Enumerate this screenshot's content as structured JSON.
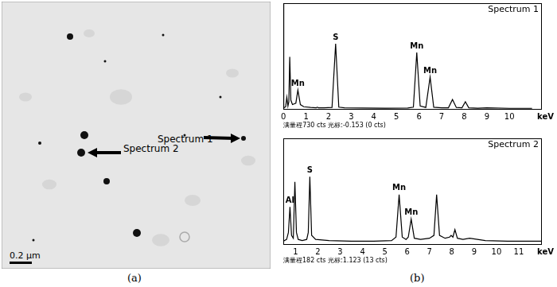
{
  "panels": {
    "a": {
      "caption": "(a)",
      "scale_bar": "0.2 μm",
      "pointers": [
        "Spectrum 1",
        "Spectrum 2"
      ]
    },
    "b": {
      "caption": "(b)"
    }
  },
  "chart_data": [
    {
      "type": "line",
      "title": "Spectrum 1",
      "x_label": "keV",
      "footer": "满量程730 cts 光标:-0.153 (0 cts)",
      "x": [
        0.0,
        0.1,
        0.15,
        0.2,
        0.24,
        0.28,
        0.33,
        0.4,
        0.55,
        0.64,
        0.75,
        0.9,
        1.2,
        1.45,
        1.5,
        1.55,
        1.8,
        2.15,
        2.31,
        2.45,
        2.7,
        3.5,
        4.5,
        5.5,
        5.75,
        5.9,
        6.05,
        6.3,
        6.49,
        6.65,
        7.0,
        7.3,
        7.48,
        7.65,
        7.9,
        8.05,
        8.2,
        8.6,
        9.0,
        10.0,
        11.0
      ],
      "values": [
        5,
        15,
        80,
        20,
        50,
        360,
        60,
        30,
        40,
        130,
        30,
        15,
        10,
        8,
        12,
        8,
        8,
        10,
        450,
        12,
        8,
        6,
        5,
        6,
        12,
        390,
        20,
        10,
        220,
        12,
        8,
        8,
        65,
        10,
        8,
        50,
        8,
        5,
        8,
        4,
        4
      ],
      "color": "#000000",
      "annotations": [
        {
          "text": "Mn",
          "x": 0.64
        },
        {
          "text": "S",
          "x": 2.31
        },
        {
          "text": "Mn",
          "x": 5.9
        },
        {
          "text": "Mn",
          "x": 6.49
        }
      ],
      "xlim": [
        0,
        11.4
      ],
      "xticks": [
        0,
        1,
        2,
        3,
        4,
        5,
        6,
        7,
        8,
        9,
        10
      ],
      "ylim": [
        0,
        730
      ],
      "grid": false,
      "tick_labels": "x"
    },
    {
      "type": "line",
      "title": "Spectrum 2",
      "x_label": "keV",
      "footer": "满量程182 cts 光标:1.123 (13 cts)",
      "x": [
        0.45,
        0.6,
        0.68,
        0.75,
        0.82,
        0.9,
        0.97,
        1.04,
        1.12,
        1.3,
        1.5,
        1.57,
        1.64,
        1.72,
        1.9,
        2.5,
        3.5,
        4.5,
        5.3,
        5.5,
        5.64,
        5.78,
        5.95,
        6.05,
        6.18,
        6.32,
        6.6,
        7.0,
        7.2,
        7.32,
        7.45,
        7.7,
        7.9,
        7.97,
        8.05,
        8.14,
        8.25,
        8.5,
        8.8,
        9.5,
        10.5,
        11.5,
        12.0
      ],
      "values": [
        5,
        8,
        20,
        64,
        15,
        10,
        107,
        20,
        8,
        6,
        8,
        20,
        116,
        15,
        8,
        6,
        5,
        5,
        6,
        12,
        85,
        12,
        8,
        12,
        43,
        10,
        8,
        10,
        15,
        85,
        15,
        10,
        12,
        15,
        12,
        25,
        10,
        8,
        10,
        6,
        5,
        5,
        5
      ],
      "color": "#000000",
      "annotations": [
        {
          "text": "Al",
          "x": 0.75
        },
        {
          "text": "S",
          "x": 1.64
        },
        {
          "text": "Mn",
          "x": 5.64
        },
        {
          "text": "Mn",
          "x": 6.18
        }
      ],
      "xlim": [
        0.45,
        12.0
      ],
      "xticks": [
        1,
        2,
        3,
        4,
        5,
        6,
        7,
        8,
        9,
        10,
        11
      ],
      "ylim": [
        0,
        182
      ],
      "grid": false,
      "tick_labels": "x"
    }
  ]
}
